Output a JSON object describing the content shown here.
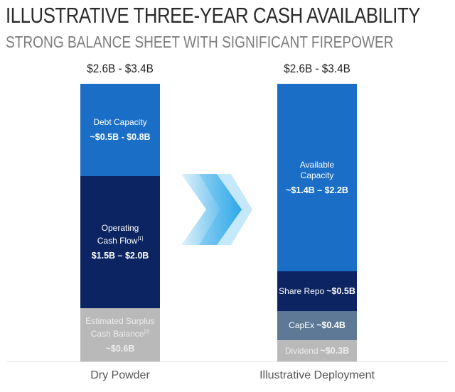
{
  "title": "ILLUSTRATIVE THREE-YEAR CASH AVAILABILITY",
  "subtitle": "STRONG BALANCE SHEET WITH SIGNIFICANT FIREPOWER",
  "chart_data": {
    "type": "bar",
    "stacked": true,
    "categories": [
      "Dry Powder",
      "Illustrative Deployment"
    ],
    "totals": [
      "$2.6B - $3.4B",
      "$2.6B - $3.4B"
    ],
    "bars": [
      {
        "name": "Dry Powder",
        "segments": [
          {
            "label": "Debt Capacity",
            "value_text": "~$0.5B - $0.8B",
            "color": "#1a6ec6"
          },
          {
            "label": "Operating Cash Flow",
            "footnote": "[1]",
            "value_text": "$1.5B – $2.0B",
            "color": "#0c2461"
          },
          {
            "label": "Estimated Surplus Cash Balance",
            "footnote": "[2]",
            "value_text": "~$0.6B",
            "color": "#b9b9b9"
          }
        ]
      },
      {
        "name": "Illustrative Deployment",
        "segments": [
          {
            "label": "Available Capacity",
            "value_text": "~$1.4B – $2.2B",
            "color": "#1a6ec6"
          },
          {
            "label": "Share Repo",
            "value_text": "~$0.5B",
            "color": "#0c2461"
          },
          {
            "label": "CapEx",
            "value_text": "~$0.4B",
            "color": "#5d7995"
          },
          {
            "label": "Dividend",
            "value_text": "~$0.3B",
            "color": "#b9b9b9"
          }
        ]
      }
    ],
    "arrow_color": "#2fa8e8"
  }
}
